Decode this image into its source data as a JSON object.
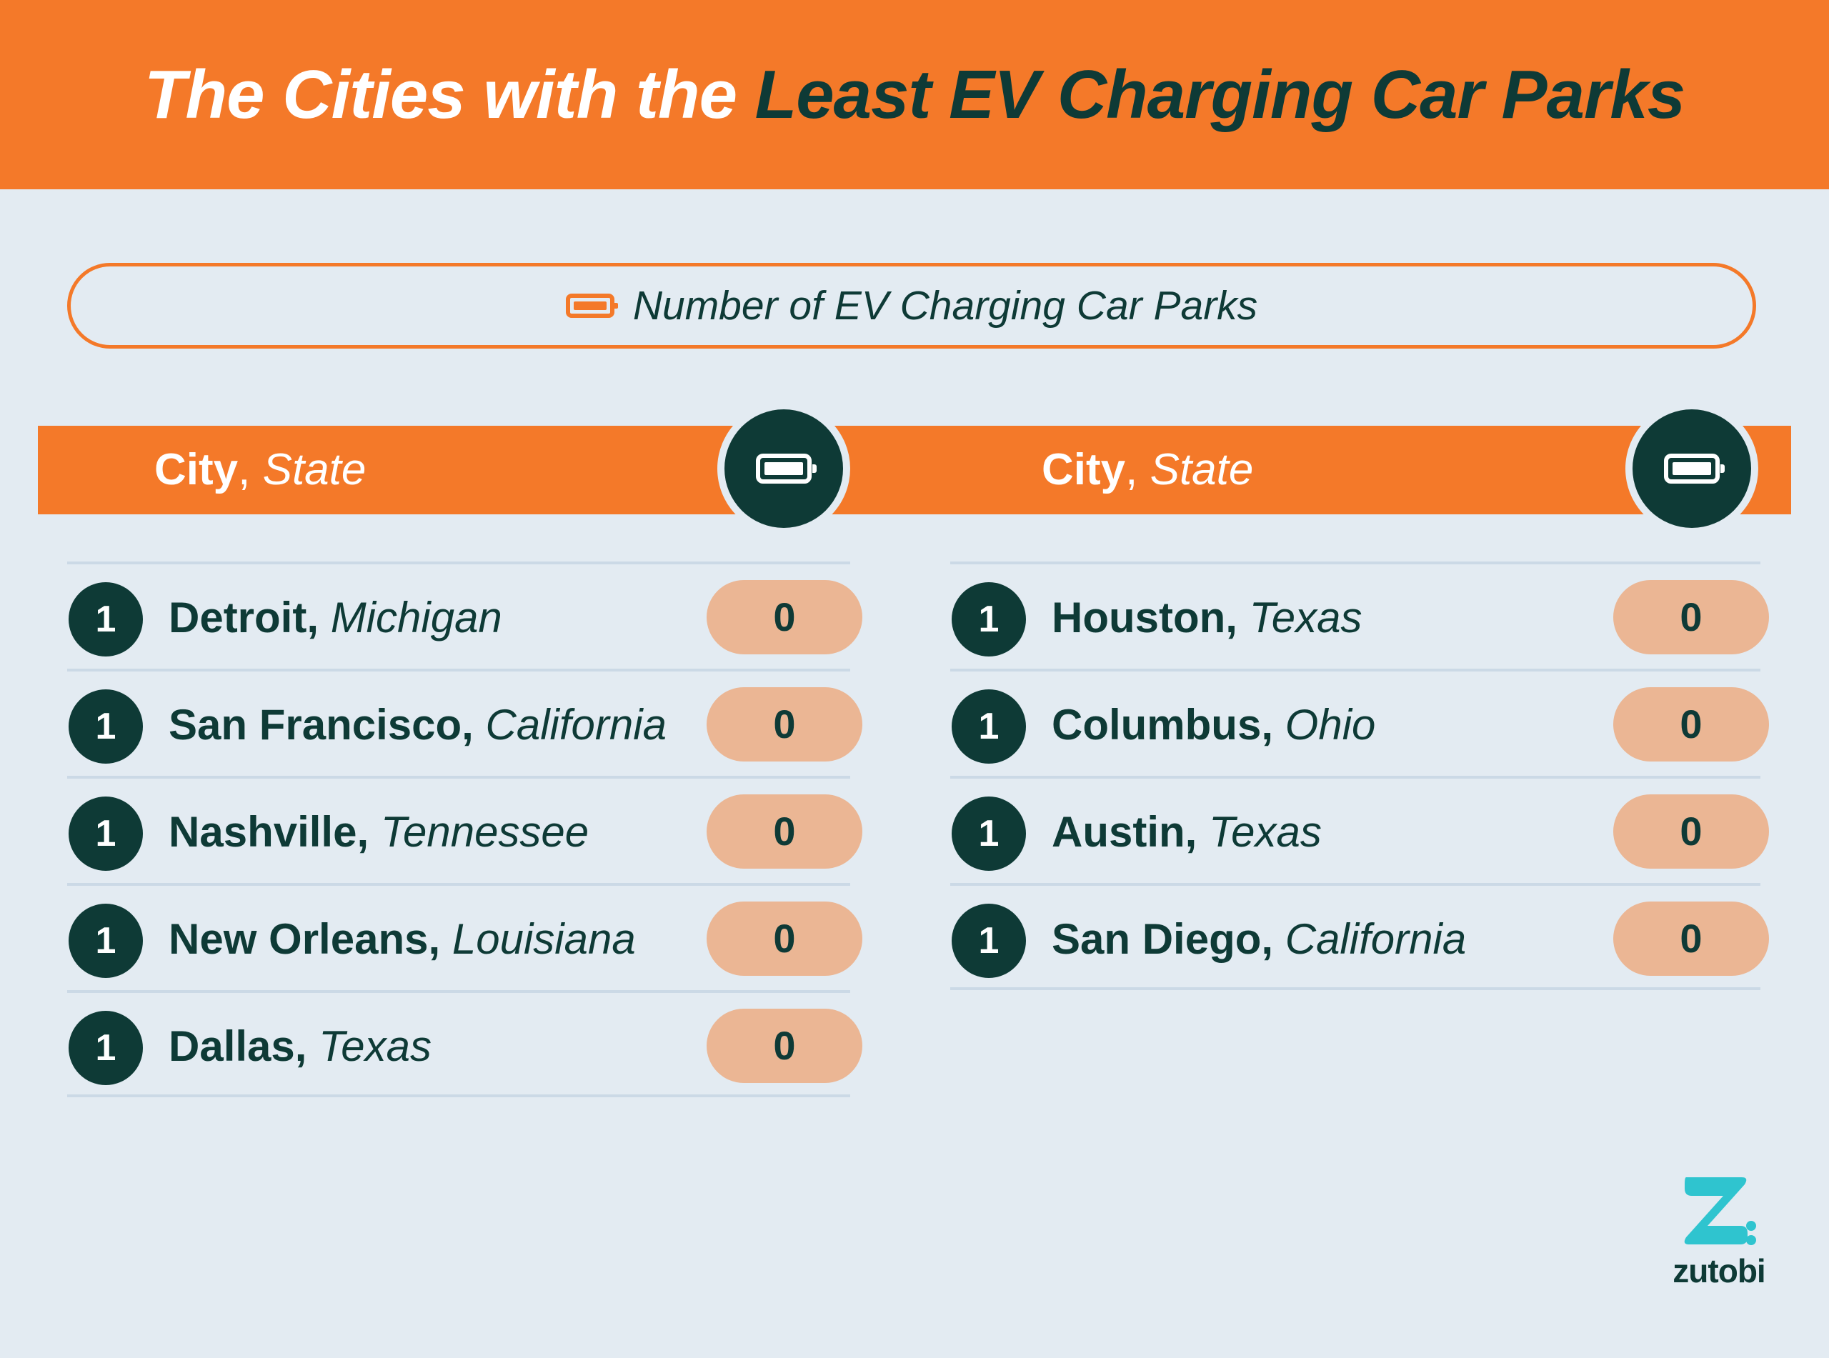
{
  "header": {
    "title_part1": "The Cities with the ",
    "title_part2": "Least EV Charging Car Parks"
  },
  "legend": {
    "icon": "battery-icon",
    "label": "Number of EV Charging Car Parks"
  },
  "columns": {
    "city_label": "City",
    "separator": ", ",
    "state_label": "State",
    "icon": "battery-icon"
  },
  "left_table": [
    {
      "rank": "1",
      "city": "Detroit",
      "state": "Michigan",
      "value": "0"
    },
    {
      "rank": "1",
      "city": "San Francisco",
      "state": "California",
      "value": "0"
    },
    {
      "rank": "1",
      "city": "Nashville",
      "state": "Tennessee",
      "value": "0"
    },
    {
      "rank": "1",
      "city": "New Orleans",
      "state": "Louisiana",
      "value": "0"
    },
    {
      "rank": "1",
      "city": "Dallas",
      "state": "Texas",
      "value": "0"
    }
  ],
  "right_table": [
    {
      "rank": "1",
      "city": "Houston",
      "state": "Texas",
      "value": "0"
    },
    {
      "rank": "1",
      "city": "Columbus",
      "state": "Ohio",
      "value": "0"
    },
    {
      "rank": "1",
      "city": "Austin",
      "state": "Texas",
      "value": "0"
    },
    {
      "rank": "1",
      "city": "San Diego",
      "state": "California",
      "value": "0"
    }
  ],
  "logo": {
    "text": "zutobi",
    "colors": {
      "accent": "#2fc4cf",
      "dark": "#0e3a36"
    }
  },
  "colors": {
    "orange": "#f47929",
    "dark_green": "#0e3a36",
    "background": "#e3ebf2",
    "pill": "#ebb694"
  }
}
